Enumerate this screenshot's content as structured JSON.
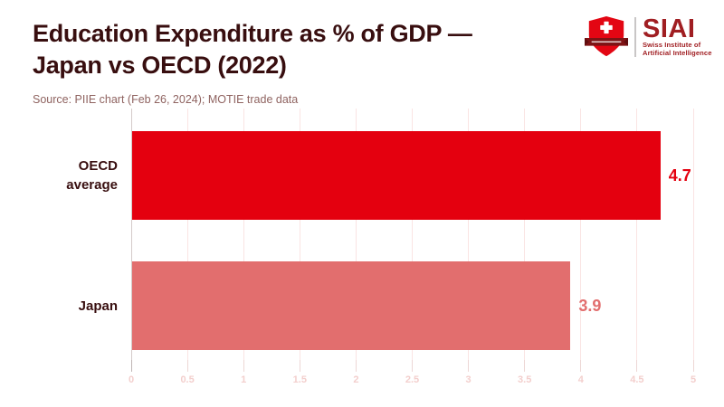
{
  "header": {
    "title_line1": "Education Expenditure as % of GDP —",
    "title_line2": "Japan vs OECD (2022)",
    "source": "Source: PIIE chart (Feb 26, 2024); MOTIE trade data"
  },
  "logo": {
    "acronym": "SIAI",
    "subtitle_line1": "Swiss Institute of",
    "subtitle_line2": "Artificial Intelligence",
    "brand_color": "#A01E22",
    "shield_icon": "swiss-shield-icon"
  },
  "chart_data": {
    "type": "bar",
    "orientation": "horizontal",
    "title": "Education Expenditure as % of GDP — Japan vs OECD (2022)",
    "categories": [
      "OECD average",
      "Japan"
    ],
    "values": [
      4.7,
      3.9
    ],
    "value_labels": [
      "4.7",
      "3.9"
    ],
    "bar_colors": [
      "#E4000F",
      "#E26E6E"
    ],
    "value_label_colors": [
      "#E4000F",
      "#E26E6E"
    ],
    "xlim": [
      0,
      5
    ],
    "xticks": [
      0,
      0.5,
      1,
      1.5,
      2,
      2.5,
      3,
      3.5,
      4,
      4.5,
      5
    ],
    "tick_labels": [
      "0",
      "0.5",
      "1",
      "1.5",
      "2",
      "2.5",
      "3",
      "3.5",
      "4",
      "4.5",
      "5"
    ],
    "grid": true,
    "legend": false,
    "xlabel": "",
    "ylabel": ""
  },
  "colors": {
    "background": "#FFFFFF",
    "title_text": "#380E0F",
    "source_text": "#8F6360",
    "gridline": "#FAE4E3",
    "zero_line": "#D5CBC9",
    "tick_label": "#F3CFCD"
  }
}
